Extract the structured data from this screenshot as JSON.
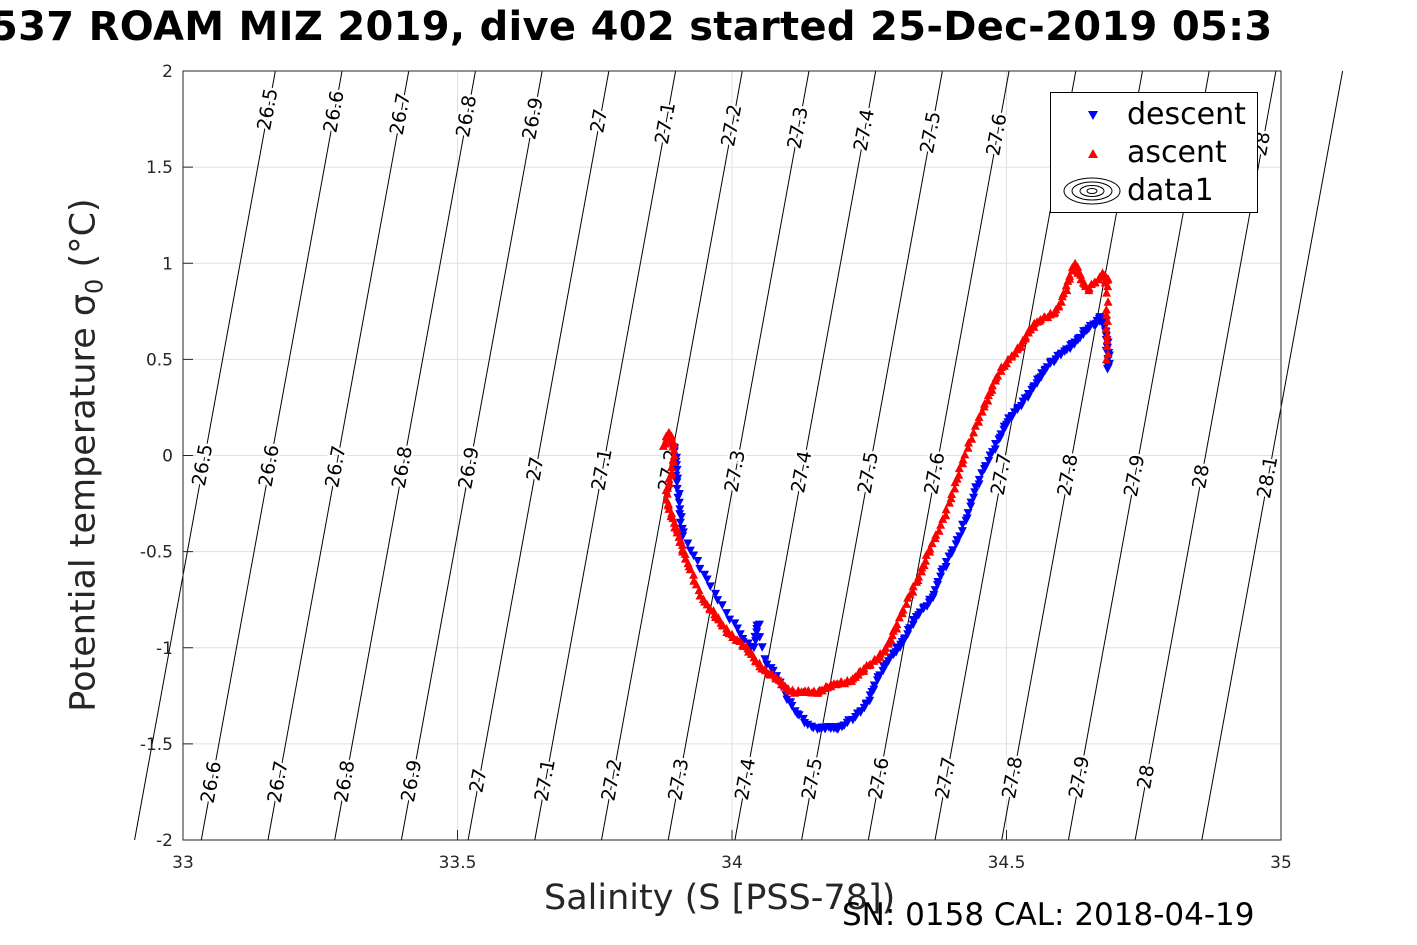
{
  "title": "537 ROAM MIZ 2019, dive 402 started 25-Dec-2019 05:3",
  "footer": "SN: 0158  CAL: 2018-04-19",
  "chart_data": {
    "type": "scatter",
    "xlabel": "Salinity (S [PSS-78])",
    "ylabel_main": "Potential temperature ",
    "ylabel_sigma": "σ",
    "ylabel_sub": "0",
    "ylabel_unit": " (°C)",
    "xlim": [
      33,
      35
    ],
    "ylim": [
      -2,
      2
    ],
    "xticks": [
      33,
      33.5,
      34,
      34.5,
      35
    ],
    "xtick_labels": [
      "33",
      "33.5",
      "34",
      "34.5",
      "35"
    ],
    "yticks": [
      2,
      1.5,
      1,
      0.5,
      0,
      -0.5,
      -1,
      -1.5,
      -2
    ],
    "ytick_labels": [
      "2",
      "1.5",
      "1",
      "0.5",
      "0",
      "-0.5",
      "-1",
      "-1.5",
      "-2"
    ],
    "grid": true,
    "legend_position": "top-right",
    "legend": [
      "descent",
      "ascent",
      "data1"
    ],
    "colors": {
      "descent": "#0000ff",
      "ascent": "#ff0000",
      "contour": "#000000",
      "grid": "#e0e0e0"
    },
    "contour_levels": [
      "26.5",
      "26.6",
      "26.7",
      "26.8",
      "26.9",
      "27",
      "27.1",
      "27.2",
      "27.3",
      "27.4",
      "27.5",
      "27.6",
      "27.7",
      "27.8",
      "27.9",
      "28",
      "28.1"
    ],
    "contour_labels_top": [
      "26.5",
      "26.6",
      "26.7",
      "26.8",
      "26.9",
      "27",
      "27.1",
      "27.2",
      "27.3",
      "27.4",
      "27.5",
      "27.6",
      "28"
    ],
    "contour_labels_middle": [
      "26.5",
      "26.6",
      "26.7",
      "26.8",
      "26.9",
      "27",
      "27.1",
      "27.2",
      "27.3",
      "27.4",
      "27.5",
      "27.6",
      "27.7",
      "27.8",
      "27.9",
      "28",
      "28.1"
    ],
    "contour_labels_bottom": [
      "26.6",
      "26.7",
      "26.8",
      "26.9",
      "27",
      "27.1",
      "27.2",
      "27.3",
      "27.4",
      "27.5",
      "27.6",
      "27.7",
      "27.8",
      "27.9",
      "28"
    ],
    "series": [
      {
        "name": "descent",
        "marker": "triangle-down",
        "x": [
          33.889,
          33.895,
          33.899,
          33.901,
          33.904,
          33.905,
          33.906,
          33.91,
          33.93,
          33.95,
          33.97,
          33.99,
          34.01,
          34.02,
          34.04,
          34.045,
          34.05,
          34.06,
          34.075,
          34.09,
          34.1,
          34.115,
          34.13,
          34.145,
          34.16,
          34.17,
          34.18,
          34.19,
          34.2,
          34.21,
          34.225,
          34.235,
          34.245,
          34.255,
          34.265,
          34.275,
          34.285,
          34.295,
          34.3,
          34.31,
          34.32,
          34.33,
          34.34,
          34.35,
          34.36,
          34.37,
          34.38,
          34.39,
          34.4,
          34.41,
          34.42,
          34.43,
          34.44,
          34.45,
          34.46,
          34.47,
          34.48,
          34.49,
          34.5,
          34.51,
          34.52,
          34.53,
          34.54,
          34.55,
          34.56,
          34.57,
          34.58,
          34.59,
          34.6,
          34.61,
          34.62,
          34.63,
          34.64,
          34.65,
          34.66,
          34.665,
          34.67,
          34.675,
          34.68,
          34.682,
          34.684,
          34.685,
          34.684,
          34.683,
          34.682
        ],
        "y": [
          0.06,
          0.02,
          -0.05,
          -0.12,
          -0.2,
          -0.28,
          -0.35,
          -0.42,
          -0.52,
          -0.62,
          -0.72,
          -0.82,
          -0.9,
          -0.97,
          -1.0,
          -0.92,
          -0.88,
          -1.06,
          -1.12,
          -1.2,
          -1.27,
          -1.33,
          -1.37,
          -1.41,
          -1.42,
          -1.42,
          -1.42,
          -1.42,
          -1.41,
          -1.39,
          -1.36,
          -1.33,
          -1.29,
          -1.23,
          -1.17,
          -1.12,
          -1.07,
          -1.03,
          -1.0,
          -0.97,
          -0.93,
          -0.88,
          -0.83,
          -0.79,
          -0.75,
          -0.7,
          -0.63,
          -0.58,
          -0.51,
          -0.44,
          -0.36,
          -0.3,
          -0.22,
          -0.15,
          -0.07,
          0.0,
          0.06,
          0.11,
          0.16,
          0.2,
          0.24,
          0.28,
          0.32,
          0.36,
          0.4,
          0.44,
          0.48,
          0.5,
          0.53,
          0.55,
          0.58,
          0.6,
          0.63,
          0.66,
          0.68,
          0.7,
          0.72,
          0.71,
          0.68,
          0.62,
          0.56,
          0.5,
          0.45,
          0.6,
          0.7
        ]
      },
      {
        "name": "ascent",
        "marker": "triangle-up",
        "x": [
          33.875,
          33.88,
          33.885,
          33.89,
          33.895,
          33.895,
          33.89,
          33.885,
          33.88,
          33.884,
          33.89,
          33.895,
          33.9,
          33.905,
          33.91,
          33.92,
          33.93,
          33.94,
          33.95,
          33.96,
          33.97,
          33.98,
          33.99,
          34.0,
          34.01,
          34.02,
          34.03,
          34.04,
          34.05,
          34.06,
          34.07,
          34.08,
          34.09,
          34.1,
          34.11,
          34.12,
          34.13,
          34.14,
          34.15,
          34.16,
          34.17,
          34.18,
          34.19,
          34.2,
          34.21,
          34.22,
          34.23,
          34.24,
          34.25,
          34.26,
          34.27,
          34.28,
          34.29,
          34.3,
          34.31,
          34.32,
          34.33,
          34.34,
          34.35,
          34.36,
          34.37,
          34.38,
          34.39,
          34.4,
          34.41,
          34.42,
          34.43,
          34.44,
          34.45,
          34.46,
          34.47,
          34.48,
          34.49,
          34.5,
          34.51,
          34.52,
          34.53,
          34.54,
          34.55,
          34.56,
          34.57,
          34.58,
          34.59,
          34.6,
          34.61,
          34.615,
          34.62,
          34.625,
          34.63,
          34.64,
          34.65,
          34.66,
          34.67,
          34.675,
          34.68,
          34.685,
          34.685,
          34.684,
          34.683,
          34.682
        ],
        "y": [
          0.05,
          0.1,
          0.12,
          0.1,
          0.06,
          0.0,
          -0.06,
          -0.12,
          -0.18,
          -0.25,
          -0.3,
          -0.35,
          -0.4,
          -0.45,
          -0.5,
          -0.56,
          -0.62,
          -0.7,
          -0.76,
          -0.8,
          -0.84,
          -0.87,
          -0.9,
          -0.93,
          -0.96,
          -0.99,
          -1.02,
          -1.05,
          -1.08,
          -1.11,
          -1.14,
          -1.16,
          -1.19,
          -1.21,
          -1.22,
          -1.23,
          -1.23,
          -1.23,
          -1.23,
          -1.22,
          -1.21,
          -1.2,
          -1.19,
          -1.18,
          -1.17,
          -1.16,
          -1.14,
          -1.12,
          -1.09,
          -1.06,
          -1.03,
          -1.0,
          -0.96,
          -0.9,
          -0.82,
          -0.74,
          -0.68,
          -0.63,
          -0.57,
          -0.5,
          -0.43,
          -0.36,
          -0.28,
          -0.2,
          -0.12,
          -0.04,
          0.04,
          0.12,
          0.2,
          0.27,
          0.33,
          0.39,
          0.44,
          0.48,
          0.52,
          0.56,
          0.6,
          0.64,
          0.67,
          0.7,
          0.72,
          0.74,
          0.76,
          0.8,
          0.86,
          0.92,
          0.98,
          1.0,
          0.95,
          0.9,
          0.86,
          0.9,
          0.93,
          0.95,
          0.9,
          0.92,
          0.8,
          0.7,
          0.6,
          0.5
        ]
      }
    ]
  }
}
